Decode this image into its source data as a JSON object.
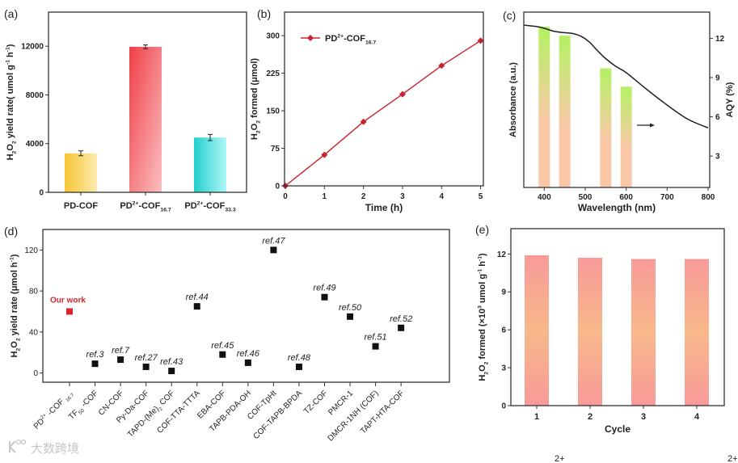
{
  "figure": {
    "watermark": "大数跨境",
    "caption_fragments": [
      "2+",
      "2+"
    ]
  },
  "chart_data": [
    {
      "panel_label": "(a)",
      "type": "bar",
      "categories": [
        [
          [
            "PD-COF",
            ""
          ]
        ],
        [
          [
            "PD",
            ""
          ],
          [
            "2+",
            "sup"
          ],
          [
            "-COF",
            ""
          ],
          [
            "16.7",
            "sub"
          ]
        ],
        [
          [
            "PD",
            ""
          ],
          [
            "2+",
            "sup"
          ],
          [
            "-COF",
            ""
          ],
          [
            "33.3",
            "sub"
          ]
        ]
      ],
      "values": [
        3200,
        11950,
        4500
      ],
      "errors": [
        200,
        150,
        250
      ],
      "ylabel": [
        [
          "H",
          ""
        ],
        [
          "2",
          "sub"
        ],
        [
          "O",
          ""
        ],
        [
          "2",
          "sub"
        ],
        [
          " yield rate( umol g",
          ""
        ],
        [
          "-1",
          "sup"
        ],
        [
          " h",
          ""
        ],
        [
          "-1",
          "sup"
        ],
        [
          ")",
          ""
        ]
      ],
      "yticks": [
        0,
        4000,
        8000,
        12000
      ],
      "ylim": [
        0,
        14800
      ],
      "colors": [
        [
          "#f7c531",
          "#fcebb0"
        ],
        [
          "#ef3f46",
          "#fbbfc1"
        ],
        [
          "#22cfcf",
          "#b0f7f7"
        ]
      ]
    },
    {
      "panel_label": "(b)",
      "type": "line",
      "x": [
        0,
        1,
        2,
        3,
        4,
        5
      ],
      "series": [
        {
          "name": [
            [
              "PD",
              ""
            ],
            [
              "2+",
              "sup"
            ],
            [
              "-COF",
              ""
            ],
            [
              "16.7",
              "sub"
            ]
          ],
          "values": [
            0,
            62,
            128,
            183,
            240,
            290
          ],
          "color": "#c8232c"
        }
      ],
      "xlabel": [
        [
          "Time (h)",
          ""
        ]
      ],
      "ylabel": [
        [
          "H",
          ""
        ],
        [
          "2",
          "sub"
        ],
        [
          "O",
          ""
        ],
        [
          "2",
          "sub"
        ],
        [
          " formed (μmol)",
          ""
        ]
      ],
      "xticks": [
        0,
        1,
        2,
        3,
        4,
        5
      ],
      "yticks": [
        0,
        75,
        150,
        225,
        300
      ],
      "xlim": [
        0,
        5.05
      ],
      "ylim": [
        0,
        347
      ],
      "legend": "top-left"
    },
    {
      "panel_label": "(c)",
      "type": "bar+line",
      "xlabel": [
        [
          "Wavelength (nm)",
          ""
        ]
      ],
      "ylabel_left": [
        [
          "Absorbance (a.u.)",
          ""
        ]
      ],
      "ylabel_right": [
        [
          "AQY (%)",
          ""
        ]
      ],
      "xticks": [
        400,
        500,
        600,
        700,
        800
      ],
      "yticks_right": [
        3,
        6,
        9,
        12
      ],
      "xlim": [
        350,
        800
      ],
      "ylim_right": [
        0.6,
        14
      ],
      "bars": {
        "x": [
          400,
          450,
          550,
          600
        ],
        "values": [
          12.9,
          12.2,
          9.7,
          8.3
        ],
        "colors": [
          "#b9ef68",
          "#fac8a8"
        ]
      },
      "absorbance": {
        "x": [
          350,
          380,
          400,
          420,
          440,
          470,
          490,
          510,
          530,
          550,
          575,
          600,
          650,
          700,
          750,
          800
        ],
        "values": [
          0.926,
          0.918,
          0.908,
          0.893,
          0.885,
          0.878,
          0.862,
          0.83,
          0.78,
          0.735,
          0.69,
          0.655,
          0.56,
          0.47,
          0.39,
          0.34
        ]
      },
      "arrow": "right"
    },
    {
      "panel_label": "(d)",
      "type": "scatter",
      "categories": [
        [
          [
            "PD",
            ""
          ],
          [
            "2+",
            "sup"
          ],
          [
            " -COF ",
            ""
          ],
          [
            "16.7",
            "sub"
          ]
        ],
        [
          [
            "TF",
            ""
          ],
          [
            "50",
            "sub"
          ],
          [
            " -COF",
            ""
          ]
        ],
        [
          [
            "CN-COF",
            ""
          ]
        ],
        [
          [
            "Py-Da-COF",
            ""
          ]
        ],
        [
          [
            "TAPD-(Me)",
            ""
          ],
          [
            "2",
            "sub"
          ],
          [
            " COF",
            ""
          ]
        ],
        [
          [
            "COF-TTA-TTTA",
            ""
          ]
        ],
        [
          [
            "EBA-COF",
            ""
          ]
        ],
        [
          [
            "TAPB-PDA-OH",
            ""
          ]
        ],
        [
          [
            "COF-TpHt",
            ""
          ]
        ],
        [
          [
            "COF-TAPB-BPDA",
            ""
          ]
        ],
        [
          [
            "TZ-COF",
            ""
          ]
        ],
        [
          [
            "PMCR-1",
            ""
          ]
        ],
        [
          [
            "DMCR-1NH (COF)",
            ""
          ]
        ],
        [
          [
            "TAPT-HTA-COF",
            ""
          ]
        ]
      ],
      "values": [
        60,
        9,
        13,
        6,
        2,
        65,
        18,
        10,
        120,
        6,
        74,
        55,
        26,
        44
      ],
      "point_labels": [
        "Our work",
        "ref.3",
        "ref.7",
        "ref.27",
        "ref.43",
        "ref.44",
        "ref.45",
        "ref.46",
        "ref.47",
        "ref.48",
        "ref.49",
        "ref.50",
        "ref.51",
        "ref.52"
      ],
      "highlight_color": "#d9262c",
      "ylabel": [
        [
          "H",
          ""
        ],
        [
          "2",
          "sub"
        ],
        [
          "O",
          ""
        ],
        [
          "2",
          "sub"
        ],
        [
          " yield rate (μmol h",
          ""
        ],
        [
          "-1",
          "sup"
        ],
        [
          ")",
          ""
        ]
      ],
      "yticks": [
        0,
        40,
        80,
        120
      ],
      "ylim": [
        -9,
        140
      ]
    },
    {
      "panel_label": "(e)",
      "type": "bar",
      "categories": [
        "1",
        "2",
        "3",
        "4"
      ],
      "values": [
        11.9,
        11.7,
        11.6,
        11.6
      ],
      "xlabel": [
        [
          "Cycle",
          ""
        ]
      ],
      "ylabel": [
        [
          "H",
          ""
        ],
        [
          "2",
          "sub"
        ],
        [
          "O",
          ""
        ],
        [
          "2",
          "sub"
        ],
        [
          " formed (×10",
          ""
        ],
        [
          "3",
          "sup"
        ],
        [
          " umol g",
          ""
        ],
        [
          "-1",
          "sup"
        ],
        [
          " h",
          ""
        ],
        [
          "-1",
          "sup"
        ],
        [
          ")",
          ""
        ]
      ],
      "yticks": [
        0,
        3,
        6,
        9,
        12
      ],
      "ylim": [
        0,
        14
      ],
      "colors": [
        "#f99a9a",
        "#f7b88a"
      ]
    }
  ]
}
